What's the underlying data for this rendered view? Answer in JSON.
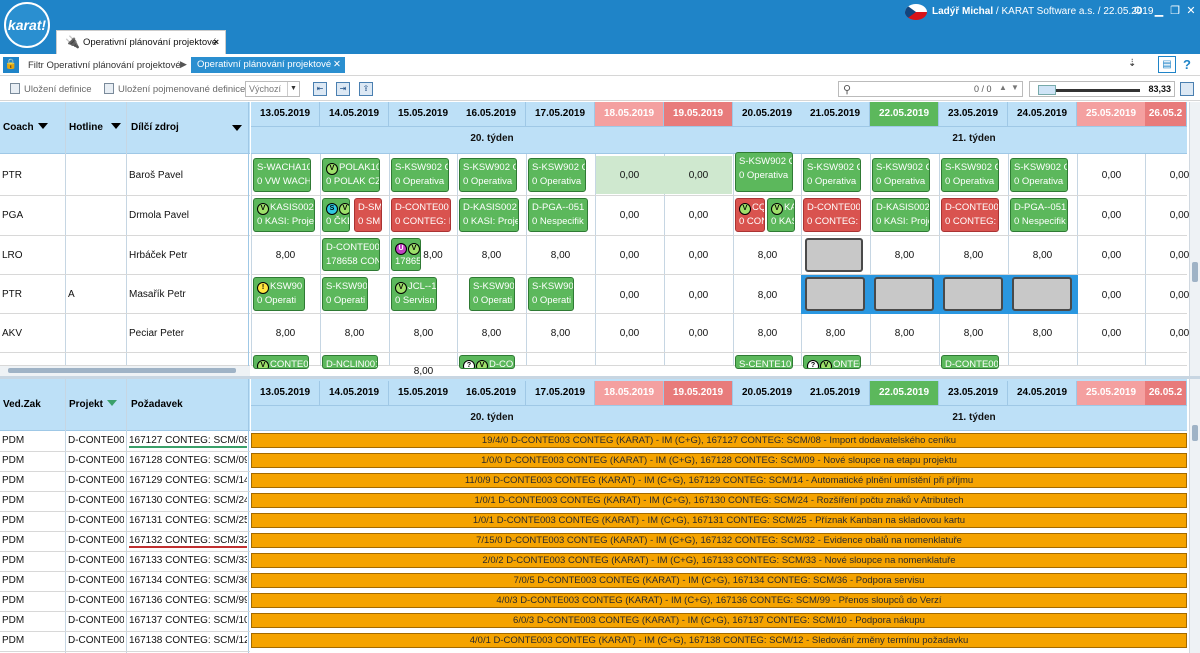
{
  "app": {
    "logo": "karat!",
    "user_name": "Ladýř Michal",
    "user_info": " / KARAT Software a.s. / 22.05.2019",
    "tab_title": "Operativní plánování projektové"
  },
  "breadcrumb": {
    "items": [
      "Filtr Operativní plánování projektové",
      "Operativní plánování projektové"
    ]
  },
  "toolbar": {
    "save_definition": "Uložení definice",
    "save_named_definition": "Uložení pojmenované definice",
    "preset": "Výchozí",
    "search_count": "0 / 0",
    "zoom_value": "83,33",
    "help": "?"
  },
  "dates": [
    "13.05.2019",
    "14.05.2019",
    "15.05.2019",
    "16.05.2019",
    "17.05.2019",
    "18.05.2019",
    "19.05.2019",
    "20.05.2019",
    "21.05.2019",
    "22.05.2019",
    "23.05.2019",
    "24.05.2019",
    "25.05.2019",
    "26.05.2"
  ],
  "day_types": [
    "w",
    "w",
    "w",
    "w",
    "w",
    "we",
    "we",
    "w",
    "w",
    "today",
    "w",
    "w",
    "we",
    "we"
  ],
  "weeks": [
    "20. týden",
    "21. týden"
  ],
  "top_headers": {
    "coach": "Coach",
    "hotline": "Hotline",
    "zdroj": "Dílčí zdroj"
  },
  "top_rows": [
    {
      "coach": "PTR",
      "hotline": "",
      "name": "Baroš Pavel"
    },
    {
      "coach": "PGA",
      "hotline": "",
      "name": "Drmola Pavel"
    },
    {
      "coach": "LRO",
      "hotline": "",
      "name": "Hrbáček Petr"
    },
    {
      "coach": "PTR",
      "hotline": "A",
      "name": "Masařík Petr"
    },
    {
      "coach": "AKV",
      "hotline": "",
      "name": "Peciar Peter"
    },
    {
      "coach": "",
      "hotline": "",
      "name": ""
    }
  ],
  "cards": {
    "r0": [
      {
        "l1": "S-WACHA10",
        "l2": "0 VW WACH"
      },
      {
        "l1": "POLAK101",
        "l2": "0 POLAK CZ"
      },
      {
        "l1": "S-KSW902 Q",
        "l2": "0 Operativa"
      },
      {
        "l1": "S-KSW902 Q",
        "l2": "0 Operativa"
      },
      {
        "l1": "S-KSW902 Q",
        "l2": "0 Operativa"
      },
      {
        "l1": "S-KSW902 Q",
        "l2": "0 Operativa"
      },
      {
        "l1": "S-KSW902 Q",
        "l2": "0 Operativa"
      },
      {
        "l1": "S-KSW902 Q",
        "l2": "0 Operativa"
      },
      {
        "l1": "S-KSW902 Q",
        "l2": "0 Operativa"
      },
      {
        "l1": "S-KSW902 Q",
        "l2": "0 Operativa"
      }
    ],
    "r1": [
      {
        "l1": "KASIS002",
        "l2": "0 KASI: Proje"
      },
      {
        "l1": "ČKD",
        "l2": "0 ČKD"
      },
      {
        "l1": "D-SM",
        "l2": "0 SM"
      },
      {
        "l1": "D-CONTE00",
        "l2": "0 CONTEG: P"
      },
      {
        "l1": "D-KASIS002",
        "l2": "0 KASI: Proje"
      },
      {
        "l1": "D-PGA--051",
        "l2": "0 Nespecifik"
      },
      {
        "l1": "CQ",
        "l2": "0 CON"
      },
      {
        "l1": "KA",
        "l2": "0 KAS"
      },
      {
        "l1": "D-CONTE00",
        "l2": "0 CONTEG: P"
      },
      {
        "l1": "D-KASIS002",
        "l2": "0 KASI: Proje"
      },
      {
        "l1": "D-CONTE00",
        "l2": "0 CONTEG: P"
      },
      {
        "l1": "D-PGA--051",
        "l2": "0 Nespecifik"
      }
    ],
    "r2": [
      {
        "l1": "D-CONTE00",
        "l2": "178658 CON"
      },
      {
        "l1": "",
        "l2": "17865"
      }
    ],
    "r3": [
      {
        "l1": "KSW90",
        "l2": "0 Operati"
      },
      {
        "l1": "S-KSW90",
        "l2": "0 Operati"
      },
      {
        "l1": "JCL--1",
        "l2": "0 Servisn"
      },
      {
        "l1": "S-KSW90",
        "l2": "0 Operati"
      },
      {
        "l1": "S-KSW90",
        "l2": "0 Operati"
      }
    ],
    "r5": [
      {
        "l1": "CONTE00",
        "l2": ""
      },
      {
        "l1": "D-NCLIN001",
        "l2": ""
      },
      {
        "l1": "D-CONTE00",
        "l2": ""
      },
      {
        "l1": "S-CENTE101",
        "l2": ""
      },
      {
        "l1": "ONTE00",
        "l2": ""
      },
      {
        "l1": "D-CONTE00",
        "l2": ""
      }
    ]
  },
  "numbers": {
    "zero": "0,00",
    "eight": "8,00"
  },
  "bottom_headers": {
    "ved": "Ved.Zak",
    "projekt": "Projekt",
    "pozadavek": "Požadavek"
  },
  "bottom_rows": [
    {
      "ved": "PDM",
      "proj": "D-CONTE00",
      "req": "167127 CONTEG: SCM/08 -",
      "bar": "19/4/0 D-CONTE003 CONTEG (KARAT) - IM (C+G), 167127 CONTEG: SCM/08 - Import dodavatelského ceníku"
    },
    {
      "ved": "PDM",
      "proj": "D-CONTE00",
      "req": "167128 CONTEG: SCM/09 -",
      "bar": "1/0/0 D-CONTE003 CONTEG (KARAT) - IM (C+G), 167128 CONTEG: SCM/09 - Nové sloupce na etapu projektu"
    },
    {
      "ved": "PDM",
      "proj": "D-CONTE00",
      "req": "167129 CONTEG: SCM/14 -",
      "bar": "11/0/9 D-CONTE003 CONTEG (KARAT) - IM (C+G), 167129 CONTEG: SCM/14 - Automatické plnění umístění při příjmu"
    },
    {
      "ved": "PDM",
      "proj": "D-CONTE00",
      "req": "167130 CONTEG: SCM/24 -",
      "bar": "1/0/1 D-CONTE003 CONTEG (KARAT) - IM (C+G), 167130 CONTEG: SCM/24 - Rozšíření počtu znaků v Atributech"
    },
    {
      "ved": "PDM",
      "proj": "D-CONTE00",
      "req": "167131 CONTEG: SCM/25 -",
      "bar": "1/0/1 D-CONTE003 CONTEG (KARAT) - IM (C+G), 167131 CONTEG: SCM/25 - Příznak Kanban na skladovou kartu"
    },
    {
      "ved": "PDM",
      "proj": "D-CONTE00",
      "req": "167132 CONTEG: SCM/32 -",
      "bar": "7/15/0 D-CONTE003 CONTEG (KARAT) - IM (C+G), 167132 CONTEG: SCM/32 - Evidence obalů na nomenklatuře"
    },
    {
      "ved": "PDM",
      "proj": "D-CONTE00",
      "req": "167133 CONTEG: SCM/33 -",
      "bar": "2/0/2 D-CONTE003 CONTEG (KARAT) - IM (C+G), 167133 CONTEG: SCM/33 - Nové sloupce na nomenklatuře"
    },
    {
      "ved": "PDM",
      "proj": "D-CONTE00",
      "req": "167134 CONTEG: SCM/36 -",
      "bar": "7/0/5 D-CONTE003 CONTEG (KARAT) - IM (C+G), 167134 CONTEG: SCM/36 - Podpora servisu"
    },
    {
      "ved": "PDM",
      "proj": "D-CONTE00",
      "req": "167136 CONTEG: SCM/99 -",
      "bar": "4/0/3 D-CONTE003 CONTEG (KARAT) - IM (C+G), 167136 CONTEG: SCM/99 - Přenos sloupců do Verzí"
    },
    {
      "ved": "PDM",
      "proj": "D-CONTE00",
      "req": "167137 CONTEG: SCM/10 -",
      "bar": "6/0/3 D-CONTE003 CONTEG (KARAT) - IM (C+G), 167137 CONTEG: SCM/10 - Podpora nákupu"
    },
    {
      "ved": "PDM",
      "proj": "D-CONTE00",
      "req": "167138 CONTEG: SCM/12 -",
      "bar": "4/0/1 D-CONTE003 CONTEG (KARAT) - IM (C+G), 167138 CONTEG: SCM/12 - Sledování změny termínu požadavku"
    }
  ],
  "colors": {
    "accent": "#1f84c8",
    "header_bg": "#bde0f7",
    "weekend": "#f4a0a0",
    "today": "#5cb85c",
    "card_green": "#5cb85c",
    "card_red": "#d9534f",
    "bar_orange": "#f5a300"
  },
  "icons": [
    "plug-icon",
    "lock-icon",
    "settings-icon",
    "minimize-icon",
    "restore-icon",
    "close-icon",
    "search-icon",
    "save-icon",
    "navigate-first-icon",
    "navigate-next-icon",
    "export-icon",
    "layout-icon",
    "help-icon"
  ]
}
